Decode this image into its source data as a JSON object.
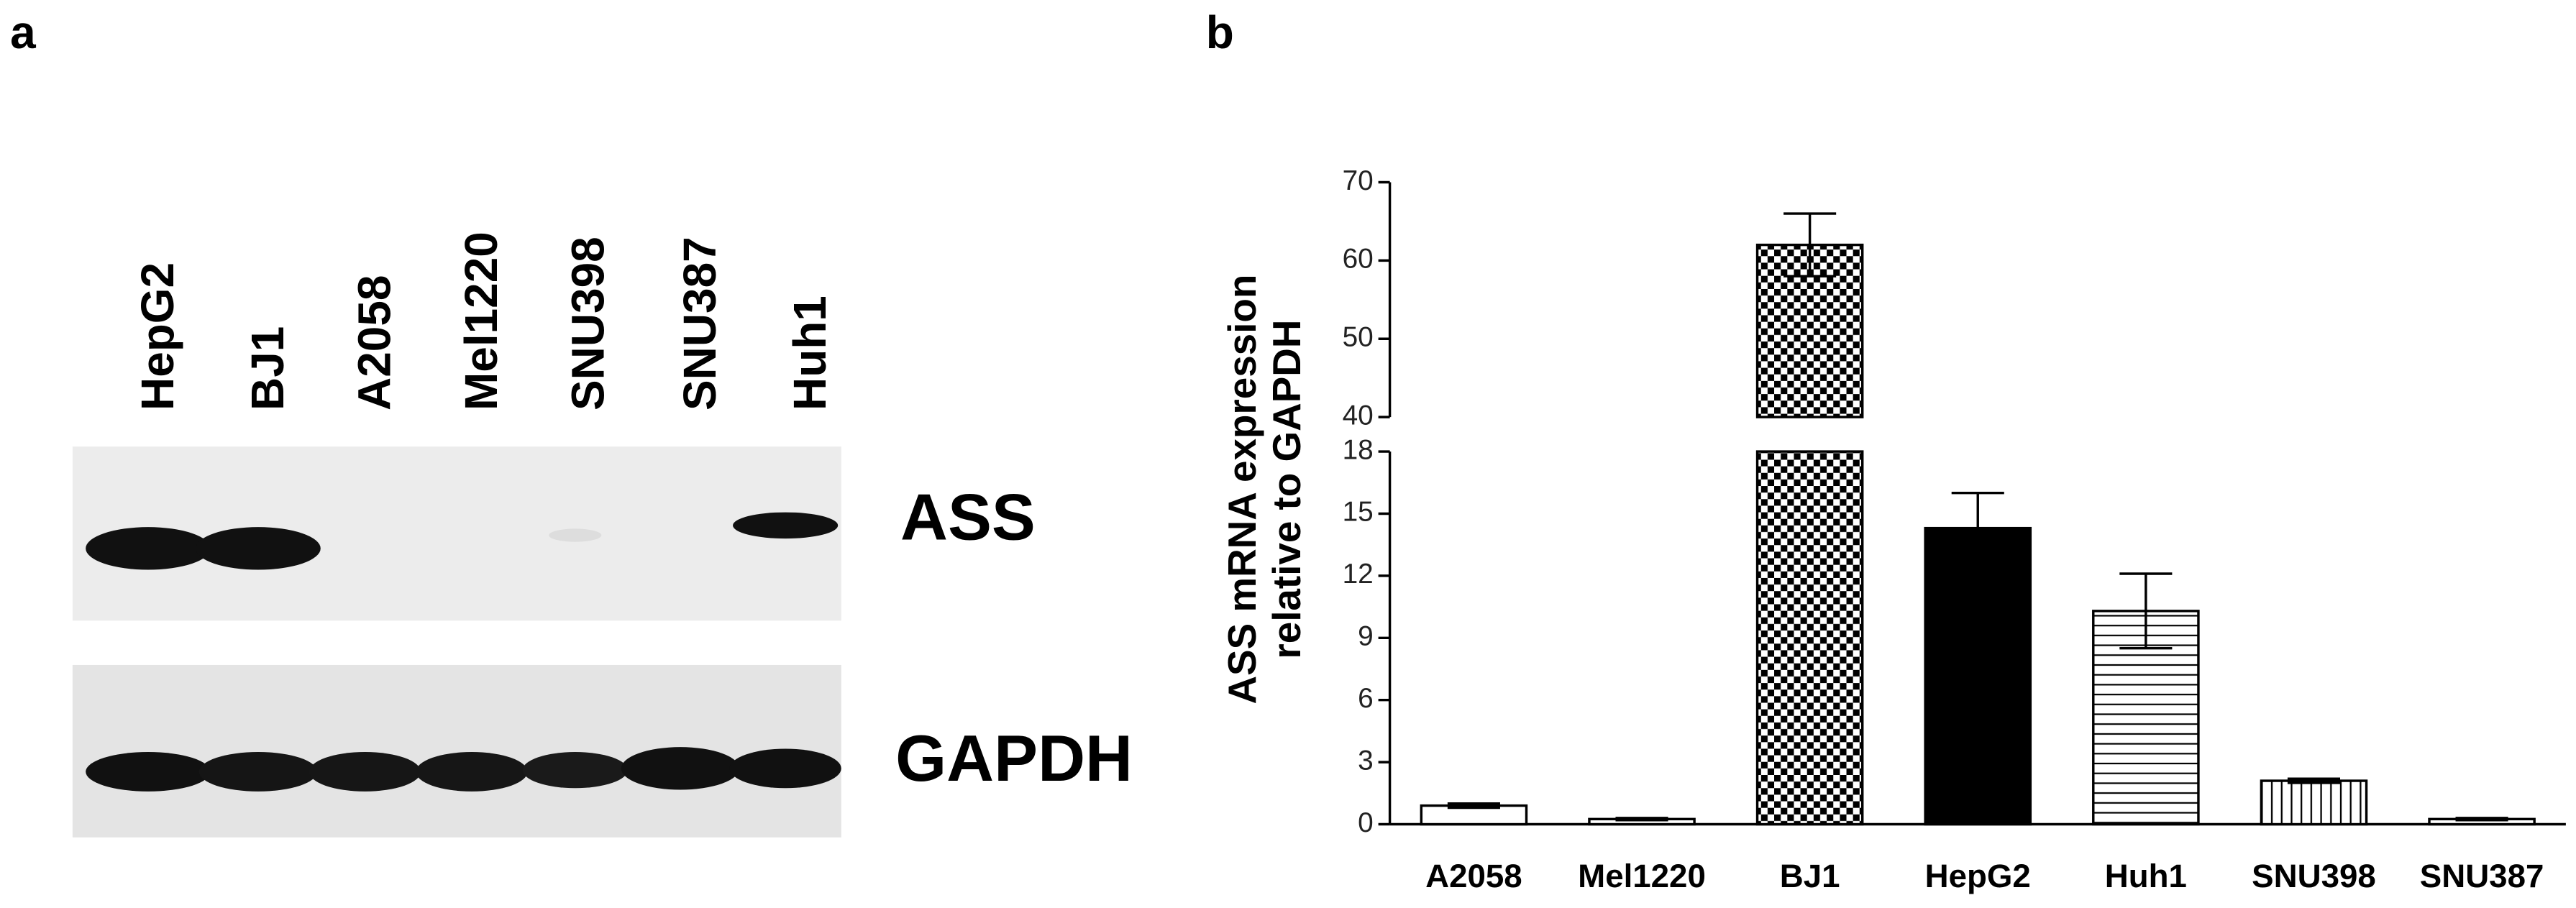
{
  "panel_a": {
    "label": "a",
    "lanes": [
      "HepG2",
      "BJ1",
      "A2058",
      "Mel1220",
      "SNU398",
      "SNU387",
      "Huh1"
    ],
    "bands": [
      "ASS",
      "GAPDH"
    ]
  },
  "chart_data": {
    "type": "bar",
    "panel_label": "b",
    "ylabel": [
      "ASS mRNA expression",
      "relative to GAPDH"
    ],
    "categories": [
      "A2058",
      "Mel1220",
      "BJ1",
      "HepG2",
      "Huh1",
      "SNU398",
      "SNU387"
    ],
    "values": [
      0.9,
      0.25,
      62,
      14.3,
      10.3,
      2.1,
      0.25
    ],
    "errors": [
      0.1,
      0.05,
      4,
      1.7,
      1.8,
      0.1,
      0.05
    ],
    "patterns": [
      "none",
      "none",
      "checker",
      "solid",
      "horizontal",
      "vertical",
      "none"
    ],
    "color": "#000000",
    "ylim": [
      0,
      70
    ],
    "axis_break": [
      18,
      40
    ],
    "yticks": [
      0,
      3,
      6,
      9,
      12,
      15,
      18,
      40,
      50,
      60,
      70
    ]
  }
}
